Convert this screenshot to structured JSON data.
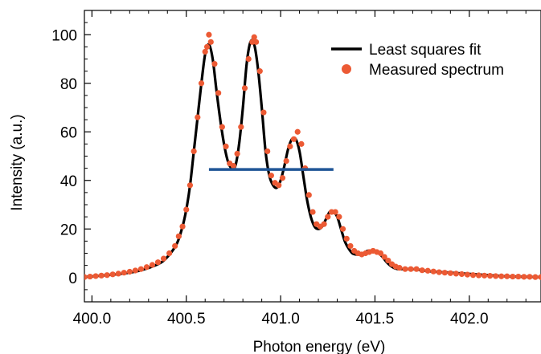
{
  "chart_data": {
    "type": "line",
    "xlabel": "Photon energy (eV)",
    "ylabel": "Intensity (a.u.)",
    "xlim": [
      399.96,
      402.38
    ],
    "ylim": [
      -10,
      110
    ],
    "x_ticks": [
      400.0,
      400.5,
      401.0,
      401.5,
      402.0
    ],
    "x_tick_labels": [
      "400.0",
      "400.5",
      "401.0",
      "401.5",
      "402.0"
    ],
    "y_ticks": [
      0,
      20,
      40,
      60,
      80,
      100
    ],
    "y_tick_labels": [
      "0",
      "20",
      "40",
      "60",
      "80",
      "100"
    ],
    "legend_position": "top-right",
    "series": [
      {
        "name": "Least squares fit",
        "kind": "line",
        "color": "#000000",
        "x": [
          399.96,
          400.05,
          400.15,
          400.25,
          400.35,
          400.4,
          400.45,
          400.48,
          400.5,
          400.52,
          400.54,
          400.56,
          400.58,
          400.6,
          400.62,
          400.64,
          400.66,
          400.68,
          400.7,
          400.72,
          400.74,
          400.76,
          400.78,
          400.8,
          400.82,
          400.84,
          400.86,
          400.88,
          400.9,
          400.92,
          400.94,
          400.96,
          400.98,
          401.0,
          401.02,
          401.04,
          401.06,
          401.08,
          401.1,
          401.12,
          401.14,
          401.16,
          401.18,
          401.2,
          401.22,
          401.24,
          401.26,
          401.28,
          401.3,
          401.32,
          401.34,
          401.36,
          401.38,
          401.4,
          401.42,
          401.44,
          401.46,
          401.48,
          401.5,
          401.52,
          401.54,
          401.56,
          401.58,
          401.6,
          401.62,
          401.65,
          401.7,
          401.75,
          401.8,
          401.9,
          402.0,
          402.1,
          402.2,
          402.3,
          402.38
        ],
        "y": [
          0.2,
          0.8,
          1.5,
          2.8,
          5.5,
          8.5,
          14,
          21,
          28,
          38,
          52,
          66,
          80,
          92,
          96,
          90,
          77,
          65,
          55,
          48,
          45,
          46,
          55,
          70,
          88,
          97,
          96,
          86,
          70,
          52,
          42,
          38,
          37,
          40,
          46,
          53,
          57,
          57,
          52,
          42,
          32,
          25,
          21,
          20,
          21,
          24,
          27,
          27,
          25,
          20,
          15,
          12,
          10,
          9.5,
          9.5,
          10,
          11,
          11,
          10.5,
          10,
          8.5,
          6.5,
          5,
          4,
          3.5,
          3.5,
          3.5,
          3,
          2.5,
          2,
          1.5,
          1,
          0.5,
          0.3,
          0.2
        ]
      },
      {
        "name": "Measured spectrum",
        "kind": "scatter",
        "color": "#ec5a34",
        "x": [
          399.96,
          399.99,
          400.02,
          400.05,
          400.08,
          400.11,
          400.14,
          400.17,
          400.2,
          400.23,
          400.26,
          400.29,
          400.32,
          400.35,
          400.38,
          400.41,
          400.44,
          400.46,
          400.48,
          400.5,
          400.52,
          400.54,
          400.56,
          400.58,
          400.6,
          400.61,
          400.62,
          400.63,
          400.65,
          400.67,
          400.69,
          400.71,
          400.73,
          400.75,
          400.77,
          400.79,
          400.81,
          400.83,
          400.85,
          400.86,
          400.87,
          400.89,
          400.91,
          400.93,
          400.95,
          400.97,
          400.99,
          401.01,
          401.03,
          401.05,
          401.07,
          401.09,
          401.11,
          401.13,
          401.15,
          401.17,
          401.19,
          401.21,
          401.23,
          401.25,
          401.27,
          401.29,
          401.31,
          401.33,
          401.35,
          401.37,
          401.39,
          401.41,
          401.43,
          401.45,
          401.47,
          401.49,
          401.51,
          401.53,
          401.55,
          401.57,
          401.59,
          401.61,
          401.63,
          401.66,
          401.69,
          401.72,
          401.75,
          401.78,
          401.81,
          401.84,
          401.87,
          401.9,
          401.93,
          401.96,
          401.99,
          402.02,
          402.05,
          402.08,
          402.11,
          402.14,
          402.17,
          402.2,
          402.23,
          402.26,
          402.29,
          402.32,
          402.35,
          402.38
        ],
        "y": [
          0.2,
          0.4,
          0.6,
          0.8,
          1,
          1.3,
          1.6,
          2,
          2.4,
          2.9,
          3.5,
          4.3,
          5.2,
          6.3,
          7.8,
          10,
          13,
          17,
          21,
          28,
          38,
          52,
          66,
          80,
          93,
          95,
          100,
          97,
          88,
          76,
          62,
          54,
          47,
          46,
          51,
          62,
          78,
          90,
          97,
          99,
          97,
          85,
          68,
          52,
          42,
          39,
          38,
          41,
          48,
          54,
          57,
          60,
          55,
          45,
          34,
          27,
          22,
          21,
          22,
          25,
          27,
          27,
          25,
          20,
          16,
          13,
          11,
          10,
          9.5,
          10,
          10.5,
          11,
          10.5,
          10,
          8.5,
          7,
          5.5,
          4.5,
          4,
          3.5,
          3.5,
          3.5,
          3,
          2.8,
          2.5,
          2.2,
          2,
          1.8,
          1.6,
          1.4,
          1.2,
          1,
          0.9,
          0.8,
          0.7,
          0.6,
          0.5,
          0.5,
          0.4,
          0.4,
          0.3,
          0.3,
          0.2,
          0.2
        ]
      },
      {
        "kind": "segment",
        "color": "#1f5596",
        "x": [
          400.62,
          401.28
        ],
        "y": [
          44.5,
          44.5
        ]
      }
    ]
  }
}
